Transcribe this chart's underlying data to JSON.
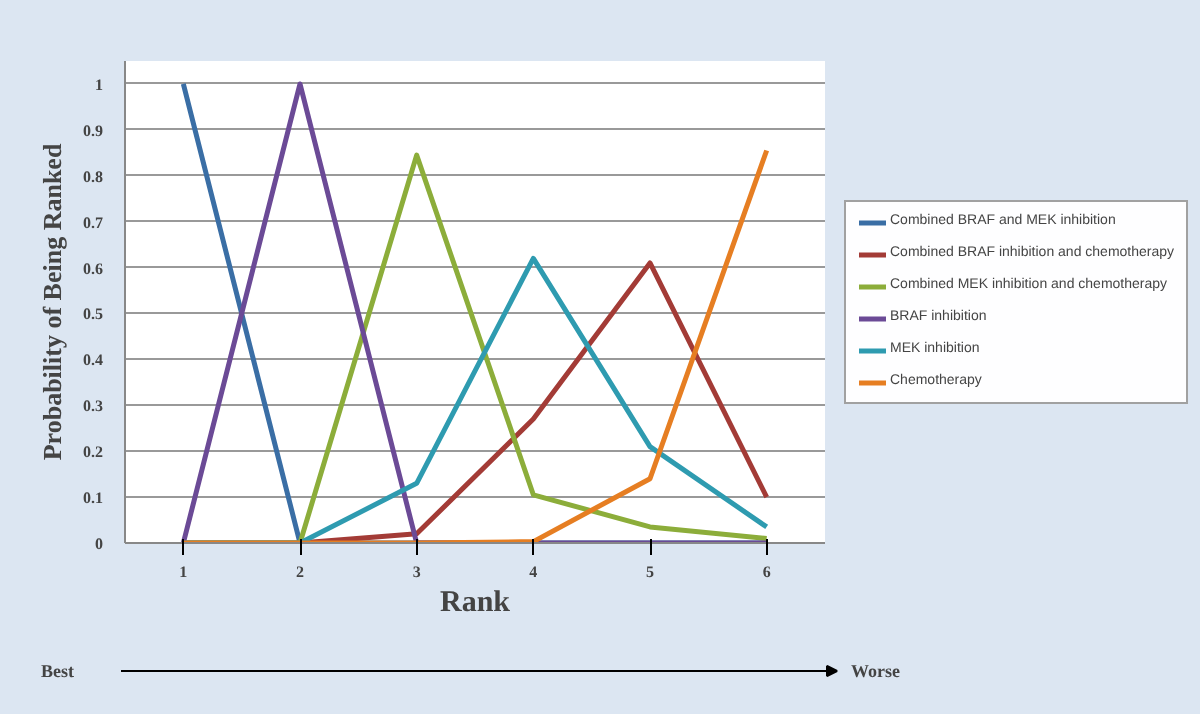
{
  "chart_data": {
    "type": "line",
    "xlabel": "Rank",
    "ylabel": "Probability of Being Ranked",
    "categories": [
      "1",
      "2",
      "3",
      "4",
      "5",
      "6"
    ],
    "series": [
      {
        "name": "Combined BRAF and MEK inhibition",
        "color": "#3a6ea5",
        "values": [
          1,
          0,
          0,
          0,
          0,
          0
        ]
      },
      {
        "name": "Combined BRAF inhibition and chemotherapy",
        "color": "#a33b36",
        "values": [
          0,
          0,
          0.02,
          0.27,
          0.61,
          0.1
        ]
      },
      {
        "name": "Combined MEK inhibition and chemotherapy",
        "color": "#8cad3a",
        "values": [
          0,
          0,
          0.845,
          0.105,
          0.035,
          0.01
        ]
      },
      {
        "name": "BRAF inhibition",
        "color": "#6b4a96",
        "values": [
          0,
          1,
          0,
          0,
          0,
          0
        ]
      },
      {
        "name": "MEK inhibition",
        "color": "#2e9bb0",
        "values": [
          0,
          0,
          0.13,
          0.62,
          0.21,
          0.035
        ]
      },
      {
        "name": "Chemotherapy",
        "color": "#e67e22",
        "values": [
          0,
          0,
          0,
          0.003,
          0.14,
          0.855
        ]
      }
    ],
    "ylim": [
      0,
      1.05
    ],
    "yticks": [
      0,
      0.1,
      0.2,
      0.3,
      0.4,
      0.5,
      0.6,
      0.7,
      0.8,
      0.9,
      1
    ],
    "grid": "y",
    "legend": "right",
    "marker": "none",
    "line_style": "solid",
    "annotations": [
      "Best",
      "Worse"
    ]
  }
}
